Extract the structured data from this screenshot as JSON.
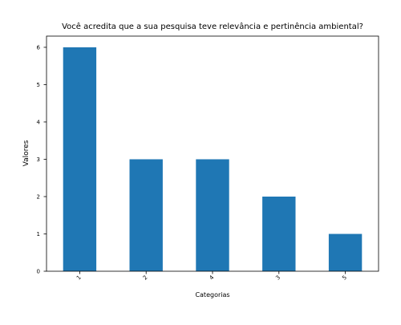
{
  "chart_data": {
    "type": "bar",
    "title": "Você acredita que a sua pesquisa teve relevância e pertinência ambiental?",
    "xlabel": "Categorias",
    "ylabel": "Valores",
    "categories": [
      "1",
      "2",
      "4",
      "3",
      "5"
    ],
    "values": [
      6,
      3,
      3,
      2,
      1
    ],
    "ylim": [
      0,
      6.3
    ],
    "yticks": [
      0,
      1,
      2,
      3,
      4,
      5,
      6
    ],
    "grid": false,
    "legend": "none",
    "bar_color": "#1f77b4"
  }
}
